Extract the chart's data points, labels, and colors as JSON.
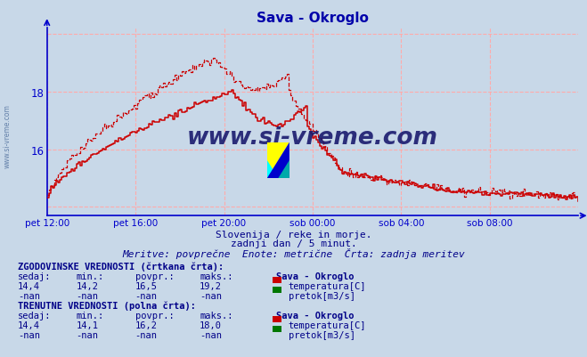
{
  "title": "Sava - Okroglo",
  "title_color": "#0000aa",
  "background_color": "#c8d8e8",
  "plot_bg_color": "#c8d8e8",
  "grid_color": "#ffaaaa",
  "axis_color": "#0000cc",
  "text_color": "#000088",
  "watermark_text": "www.si-vreme.com",
  "watermark_color": "#1a1a6e",
  "subtitle1": "Slovenija / reke in morje.",
  "subtitle2": "zadnji dan / 5 minut.",
  "subtitle3": "Meritve: povprečne  Enote: metrične  Črta: zadnja meritev",
  "x_tick_labels": [
    "pet 12:00",
    "pet 16:00",
    "pet 20:00",
    "sob 00:00",
    "sob 04:00",
    "sob 08:00"
  ],
  "y_min": 13.7,
  "y_max": 20.2,
  "x_min": 0,
  "x_max": 288,
  "x_ticks": [
    0,
    48,
    96,
    144,
    192,
    240
  ],
  "y_tick_vals": [
    16,
    18
  ],
  "y_tick_labels": [
    "16",
    "18"
  ],
  "line_color": "#cc0000",
  "table_hist_title": "ZGODOVINSKE VREDNOSTI (črtkana črta):",
  "table_curr_title": "TRENUTNE VREDNOSTI (polna črta):",
  "col_headers": [
    "sedaj:",
    "min.:",
    "povpr.:",
    "maks.:",
    "Sava - Okroglo"
  ],
  "table_hist_temp": [
    "14,4",
    "14,2",
    "16,5",
    "19,2"
  ],
  "table_hist_pretok": [
    "-nan",
    "-nan",
    "-nan",
    "-nan"
  ],
  "table_curr_temp": [
    "14,4",
    "14,1",
    "16,2",
    "18,0"
  ],
  "table_curr_pretok": [
    "-nan",
    "-nan",
    "-nan",
    "-nan"
  ],
  "temp_color": "#cc0000",
  "pretok_color": "#007700",
  "side_watermark": "www.si-vreme.com"
}
